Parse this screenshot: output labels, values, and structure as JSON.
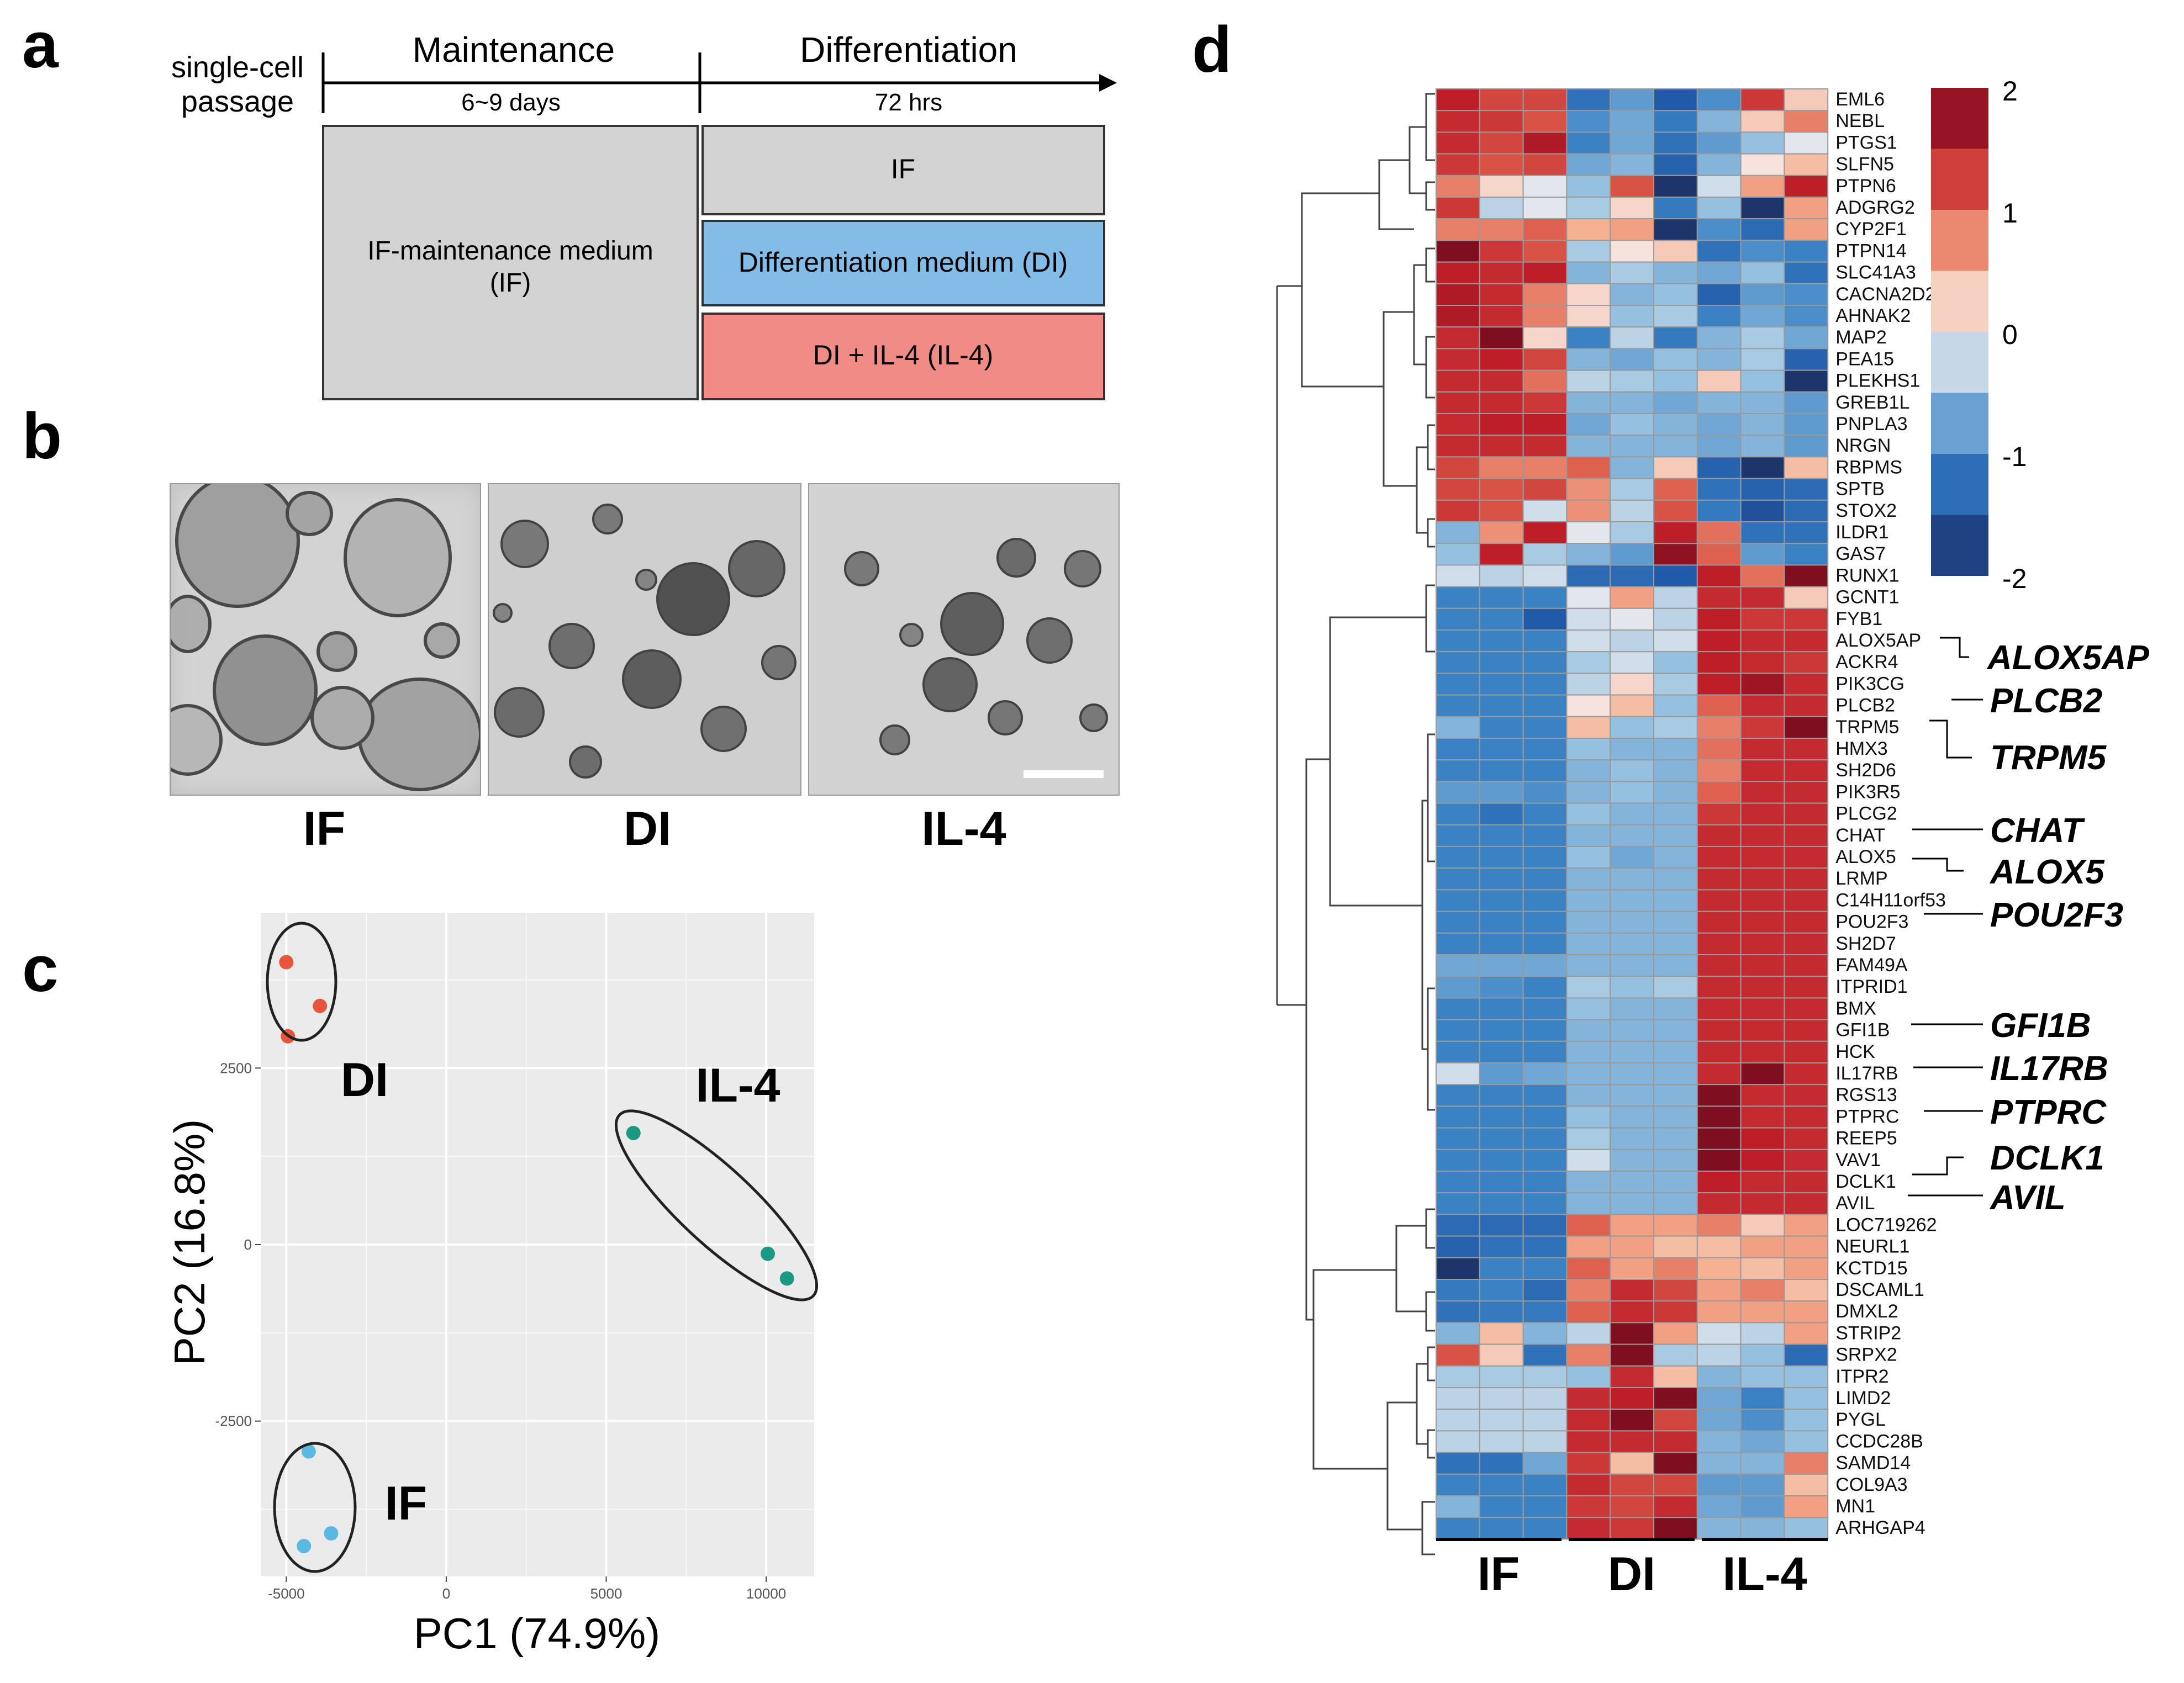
{
  "panels": {
    "a": {
      "letter": "a",
      "row_label_1": "single-cell",
      "row_label_2": "passage",
      "maint_title": "Maintenance",
      "maint_sub": "6~9 days",
      "diff_title": "Differentiation",
      "diff_sub": "72 hrs",
      "if_box_1": "IF-maintenance medium",
      "if_box_2": "(IF)",
      "box_if": "IF",
      "box_di": "Differentiation medium (DI)",
      "box_il4": "DI + IL-4 (IL-4)",
      "colors": {
        "grey": "#d3d3d3",
        "blue": "#84bce8",
        "pink": "#f08b85"
      }
    },
    "b": {
      "letter": "b",
      "labels": [
        "IF",
        "DI",
        "IL-4"
      ]
    },
    "c": {
      "letter": "c",
      "xlabel": "PC1 (74.9%)",
      "ylabel": "PC2 (16.8%)",
      "group_labels": {
        "DI": "DI",
        "IL4": "IL-4",
        "IF": "IF"
      }
    },
    "d": {
      "letter": "d",
      "legend_ticks": [
        "2",
        "1",
        "0",
        "-1",
        "-2"
      ],
      "group_labels": [
        "IF",
        "DI",
        "IL-4"
      ],
      "highlights": [
        "ALOX5AP",
        "PLCB2",
        "TRPM5",
        "CHAT",
        "ALOX5",
        "POU2F3",
        "GFI1B",
        "IL17RB",
        "PTPRC",
        "DCLK1",
        "AVIL"
      ]
    }
  },
  "chart_data": [
    {
      "type": "scatter",
      "title": "",
      "xlabel": "PC1 (74.9%)",
      "ylabel": "PC2 (16.8%)",
      "xlim": [
        -5800,
        11500
      ],
      "ylim": [
        -4700,
        4700
      ],
      "xticks": [
        -5000,
        0,
        5000,
        10000
      ],
      "yticks": [
        -2500,
        0,
        2500
      ],
      "grid": true,
      "series": [
        {
          "name": "DI",
          "color": "#e8553a",
          "x": [
            -5000,
            -3950,
            -4950
          ],
          "y": [
            4000,
            3380,
            2950
          ]
        },
        {
          "name": "IL-4",
          "color": "#1a9a82",
          "x": [
            5850,
            10050,
            10650
          ],
          "y": [
            1580,
            -130,
            -480
          ]
        },
        {
          "name": "IF",
          "color": "#5bb8e0",
          "x": [
            -4300,
            -3600,
            -4450
          ],
          "y": [
            -2930,
            -4090,
            -4270
          ]
        }
      ]
    },
    {
      "type": "heatmap",
      "title": "",
      "columns": [
        "IF",
        "IF",
        "IF",
        "DI",
        "DI",
        "DI",
        "IL-4",
        "IL-4",
        "IL-4"
      ],
      "scale": [
        -2,
        2
      ],
      "rows": [
        "EML6",
        "NEBL",
        "PTGS1",
        "SLFN5",
        "PTPN6",
        "ADGRG2",
        "CYP2F1",
        "PTPN14",
        "SLC41A3",
        "CACNA2D2",
        "AHNAK2",
        "MAP2",
        "PEA15",
        "PLEKHS1",
        "GREB1L",
        "PNPLA3",
        "NRGN",
        "RBPMS",
        "SPTB",
        "STOX2",
        "ILDR1",
        "GAS7",
        "RUNX1",
        "GCNT1",
        "FYB1",
        "ALOX5AP",
        "ACKR4",
        "PIK3CG",
        "PLCB2",
        "TRPM5",
        "HMX3",
        "SH2D6",
        "PIK3R5",
        "PLCG2",
        "CHAT",
        "ALOX5",
        "LRMP",
        "C14H11orf53",
        "POU2F3",
        "SH2D7",
        "FAM49A",
        "ITPRID1",
        "BMX",
        "GFI1B",
        "HCK",
        "IL17RB",
        "RGS13",
        "PTPRC",
        "REEP5",
        "VAV1",
        "DCLK1",
        "AVIL",
        "LOC719262",
        "NEURL1",
        "KCTD15",
        "DSCAML1",
        "DMXL2",
        "STRIP2",
        "SRPX2",
        "ITPR2",
        "LIMD2",
        "PYGL",
        "CCDC28B",
        "SAMD14",
        "COL9A3",
        "MN1",
        "ARHGAP4"
      ],
      "values": [
        [
          1.5,
          1.2,
          1.2,
          -1.2,
          -0.8,
          -1.5,
          -0.9,
          1.3,
          0.3
        ],
        [
          1.4,
          1.3,
          1.1,
          -0.9,
          -0.7,
          -1.1,
          -0.6,
          0.3,
          0.8
        ],
        [
          1.4,
          1.2,
          1.6,
          -1.0,
          -0.7,
          -1.2,
          -0.8,
          -0.5,
          -0.1
        ],
        [
          1.3,
          1.1,
          1.2,
          -0.7,
          -0.6,
          -1.4,
          -0.6,
          0.1,
          0.4
        ],
        [
          0.8,
          0.2,
          -0.1,
          -0.5,
          1.1,
          -1.9,
          -0.2,
          0.6,
          1.5
        ],
        [
          1.3,
          -0.3,
          -0.1,
          -0.4,
          0.2,
          -1.1,
          -0.5,
          -1.9,
          0.6
        ],
        [
          0.8,
          0.8,
          1.0,
          0.5,
          0.6,
          -1.9,
          -0.9,
          -1.3,
          0.6
        ],
        [
          1.9,
          1.3,
          1.1,
          -0.4,
          0.1,
          0.3,
          -1.2,
          -0.9,
          -1.0
        ],
        [
          1.5,
          1.4,
          1.5,
          -0.6,
          -0.4,
          -0.6,
          -0.7,
          -0.5,
          -1.2
        ],
        [
          1.6,
          1.4,
          0.8,
          0.2,
          -0.6,
          -0.5,
          -1.4,
          -0.8,
          -0.9
        ],
        [
          1.6,
          1.4,
          0.8,
          0.2,
          -0.5,
          -0.4,
          -1.0,
          -0.7,
          -0.9
        ],
        [
          1.4,
          1.9,
          0.2,
          -1.0,
          -0.3,
          -1.1,
          -0.6,
          -0.4,
          -0.7
        ],
        [
          1.4,
          1.5,
          1.2,
          -0.6,
          -0.7,
          -0.5,
          -0.6,
          -0.4,
          -1.4
        ],
        [
          1.4,
          1.4,
          0.9,
          -0.3,
          -0.4,
          -0.5,
          0.3,
          -0.5,
          -1.9
        ],
        [
          1.4,
          1.4,
          1.3,
          -0.6,
          -0.6,
          -0.7,
          -0.6,
          -0.6,
          -0.8
        ],
        [
          1.4,
          1.5,
          1.5,
          -0.7,
          -0.5,
          -0.6,
          -0.7,
          -0.6,
          -0.8
        ],
        [
          1.4,
          1.4,
          1.4,
          -0.6,
          -0.6,
          -0.6,
          -0.7,
          -0.6,
          -0.8
        ],
        [
          1.2,
          0.8,
          0.8,
          1.0,
          -0.6,
          0.3,
          -1.4,
          -1.9,
          0.4
        ],
        [
          1.2,
          1.1,
          1.2,
          0.7,
          -0.4,
          1.0,
          -1.2,
          -1.4,
          -1.3
        ],
        [
          1.3,
          1.1,
          -0.2,
          0.7,
          -0.3,
          1.1,
          -1.1,
          -1.6,
          -1.3
        ],
        [
          -0.6,
          0.7,
          1.5,
          -0.1,
          -0.4,
          1.5,
          0.9,
          -1.2,
          -1.2
        ],
        [
          -0.5,
          1.5,
          -0.4,
          -0.6,
          -0.8,
          1.8,
          1.0,
          -0.8,
          -1.0
        ],
        [
          -0.2,
          -0.3,
          -0.2,
          -1.3,
          -1.3,
          -1.5,
          1.5,
          0.9,
          1.9
        ],
        [
          -1.0,
          -1.0,
          -1.0,
          -0.1,
          0.6,
          -0.3,
          1.4,
          1.4,
          0.3
        ],
        [
          -1.0,
          -1.0,
          -1.5,
          -0.2,
          -0.1,
          -0.3,
          1.5,
          1.3,
          1.3
        ],
        [
          -1.0,
          -1.0,
          -1.0,
          -0.2,
          -0.3,
          -0.2,
          1.5,
          1.4,
          1.4
        ],
        [
          -1.0,
          -1.0,
          -1.0,
          -0.4,
          -0.2,
          -0.5,
          1.5,
          1.4,
          1.3
        ],
        [
          -1.0,
          -1.0,
          -1.0,
          -0.3,
          0.2,
          -0.4,
          1.5,
          1.7,
          1.4
        ],
        [
          -1.0,
          -1.0,
          -1.0,
          0.1,
          0.4,
          -0.5,
          1.0,
          1.4,
          1.4
        ],
        [
          -0.6,
          -1.0,
          -1.0,
          0.4,
          -0.5,
          -0.4,
          0.8,
          1.3,
          1.9
        ],
        [
          -1.0,
          -1.0,
          -1.0,
          -0.5,
          -0.6,
          -0.6,
          0.9,
          1.4,
          1.4
        ],
        [
          -1.0,
          -1.0,
          -1.0,
          -0.6,
          -0.5,
          -0.6,
          0.8,
          1.4,
          1.4
        ],
        [
          -0.8,
          -0.8,
          -0.9,
          -0.6,
          -0.5,
          -0.6,
          1.0,
          1.4,
          1.4
        ],
        [
          -1.0,
          -1.2,
          -1.0,
          -0.5,
          -0.6,
          -0.6,
          1.3,
          1.4,
          1.4
        ],
        [
          -1.0,
          -1.0,
          -1.0,
          -0.6,
          -0.6,
          -0.6,
          1.4,
          1.4,
          1.4
        ],
        [
          -1.0,
          -1.0,
          -1.0,
          -0.5,
          -0.7,
          -0.6,
          1.4,
          1.4,
          1.4
        ],
        [
          -1.0,
          -1.0,
          -1.0,
          -0.6,
          -0.6,
          -0.6,
          1.4,
          1.4,
          1.4
        ],
        [
          -1.0,
          -1.0,
          -1.0,
          -0.6,
          -0.6,
          -0.6,
          1.4,
          1.4,
          1.4
        ],
        [
          -1.0,
          -1.0,
          -1.0,
          -0.6,
          -0.6,
          -0.6,
          1.4,
          1.4,
          1.4
        ],
        [
          -1.0,
          -1.0,
          -1.0,
          -0.6,
          -0.6,
          -0.6,
          1.4,
          1.4,
          1.4
        ],
        [
          -0.7,
          -0.7,
          -0.7,
          -0.6,
          -0.6,
          -0.6,
          1.4,
          1.4,
          1.4
        ],
        [
          -0.8,
          -0.9,
          -1.0,
          -0.4,
          -0.5,
          -0.4,
          1.4,
          1.4,
          1.4
        ],
        [
          -1.0,
          -1.0,
          -1.0,
          -0.5,
          -0.6,
          -0.6,
          1.4,
          1.4,
          1.4
        ],
        [
          -1.0,
          -1.0,
          -1.0,
          -0.6,
          -0.6,
          -0.6,
          1.4,
          1.4,
          1.4
        ],
        [
          -1.0,
          -1.0,
          -1.0,
          -0.6,
          -0.6,
          -0.6,
          1.4,
          1.4,
          1.4
        ],
        [
          -0.2,
          -0.8,
          -0.7,
          -0.6,
          -0.6,
          -0.6,
          1.4,
          1.9,
          1.4
        ],
        [
          -1.0,
          -1.0,
          -1.0,
          -0.6,
          -0.6,
          -0.6,
          1.9,
          1.4,
          1.4
        ],
        [
          -1.0,
          -1.0,
          -1.0,
          -0.5,
          -0.6,
          -0.6,
          1.9,
          1.4,
          1.4
        ],
        [
          -1.0,
          -1.0,
          -1.0,
          -0.4,
          -0.6,
          -0.6,
          1.9,
          1.5,
          1.4
        ],
        [
          -1.0,
          -1.0,
          -1.0,
          -0.2,
          -0.6,
          -0.6,
          1.9,
          1.5,
          1.4
        ],
        [
          -1.0,
          -1.0,
          -1.0,
          -0.6,
          -0.6,
          -0.6,
          1.5,
          1.4,
          1.4
        ],
        [
          -1.0,
          -1.0,
          -1.0,
          -0.6,
          -0.6,
          -0.6,
          1.4,
          1.4,
          1.4
        ],
        [
          -1.3,
          -1.3,
          -1.3,
          1.0,
          0.6,
          0.6,
          0.8,
          0.3,
          0.6
        ],
        [
          -1.4,
          -1.2,
          -1.2,
          0.6,
          0.6,
          0.4,
          0.4,
          0.6,
          0.6
        ],
        [
          -1.9,
          -1.0,
          -1.0,
          1.0,
          0.6,
          0.8,
          0.5,
          0.4,
          0.6
        ],
        [
          -1.1,
          -1.0,
          -1.3,
          0.8,
          1.4,
          1.2,
          0.6,
          0.8,
          0.4
        ],
        [
          -1.2,
          -1.1,
          -1.1,
          1.0,
          1.4,
          1.3,
          0.6,
          0.6,
          0.6
        ],
        [
          -0.6,
          0.4,
          -0.6,
          -0.3,
          1.9,
          0.6,
          -0.2,
          -0.3,
          0.6
        ],
        [
          1.1,
          0.3,
          -1.2,
          0.8,
          1.9,
          -0.4,
          -0.3,
          -0.5,
          -1.3
        ],
        [
          -0.4,
          -0.4,
          -0.4,
          -0.5,
          1.4,
          0.4,
          -0.6,
          -0.5,
          -0.5
        ],
        [
          -0.3,
          -0.3,
          -0.3,
          1.4,
          1.5,
          1.9,
          -0.7,
          -1.0,
          -0.5
        ],
        [
          -0.3,
          -0.3,
          -0.3,
          1.4,
          1.9,
          1.2,
          -0.7,
          -0.9,
          -0.5
        ],
        [
          -0.3,
          -0.3,
          -0.3,
          1.4,
          1.4,
          1.4,
          -0.6,
          -0.7,
          -0.5
        ],
        [
          -1.2,
          -1.2,
          -0.7,
          1.3,
          0.4,
          1.9,
          -0.6,
          -0.6,
          0.8
        ],
        [
          -1.0,
          -1.0,
          -1.0,
          1.4,
          1.2,
          1.2,
          -0.8,
          -0.8,
          0.4
        ],
        [
          -0.6,
          -1.0,
          -1.0,
          1.3,
          1.2,
          1.4,
          -0.7,
          -0.8,
          0.6
        ],
        [
          -1.0,
          -1.0,
          -1.0,
          1.4,
          1.3,
          1.9,
          -0.6,
          -0.6,
          -0.5
        ]
      ]
    }
  ]
}
